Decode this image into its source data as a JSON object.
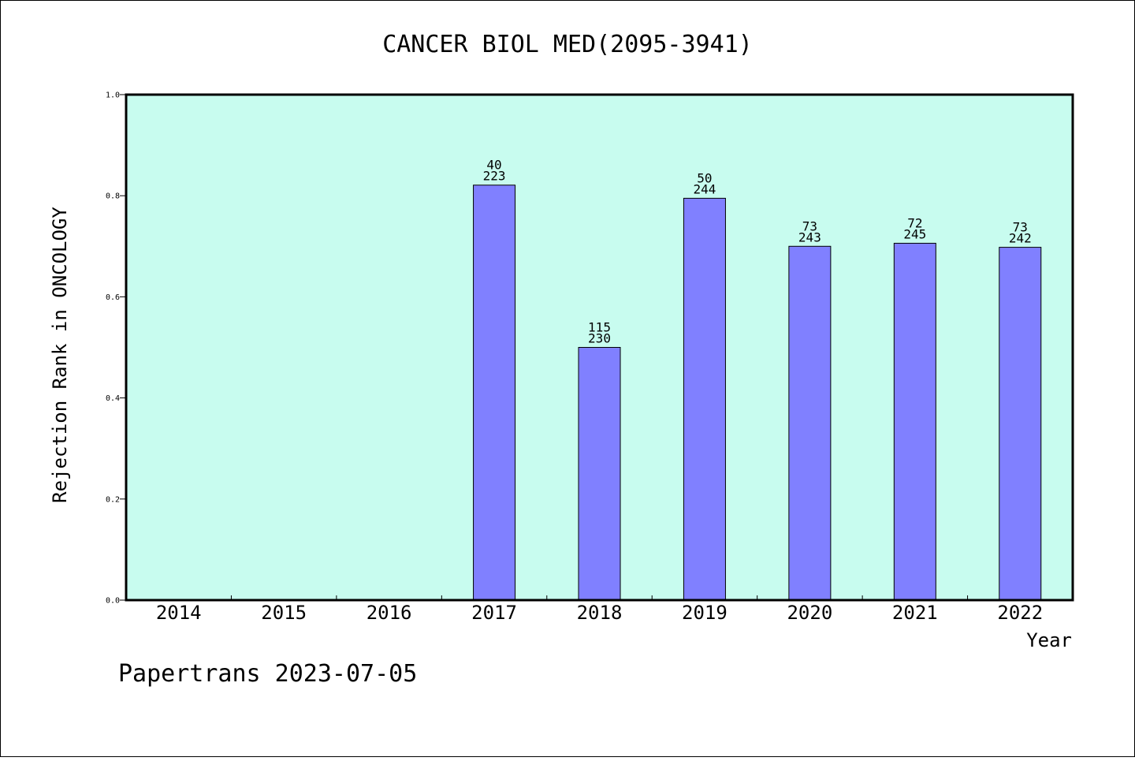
{
  "chart_data": {
    "type": "bar",
    "title": "CANCER BIOL MED(2095-3941)",
    "ylabel": "Rejection Rank in ONCOLOGY",
    "xlabel": "Year",
    "ylim": [
      0,
      1.0
    ],
    "yticks": [
      "0.0",
      "0.2",
      "0.4",
      "0.6",
      "0.8",
      "1.0"
    ],
    "categories": [
      "2014",
      "2015",
      "2016",
      "2017",
      "2018",
      "2019",
      "2020",
      "2021",
      "2022"
    ],
    "values": [
      null,
      null,
      null,
      0.821,
      0.5,
      0.795,
      0.7,
      0.706,
      0.698
    ],
    "rank_labels": [
      null,
      null,
      null,
      "40",
      "115",
      "50",
      "73",
      "72",
      "73"
    ],
    "total_labels": [
      null,
      null,
      null,
      "223",
      "230",
      "244",
      "243",
      "245",
      "242"
    ],
    "grid": false,
    "colors": {
      "plot_bg": "#c8fcef",
      "bar": "#8080ff",
      "bar_edge": "#000000"
    }
  },
  "footer": {
    "credit": "Papertrans 2023-07-05"
  }
}
